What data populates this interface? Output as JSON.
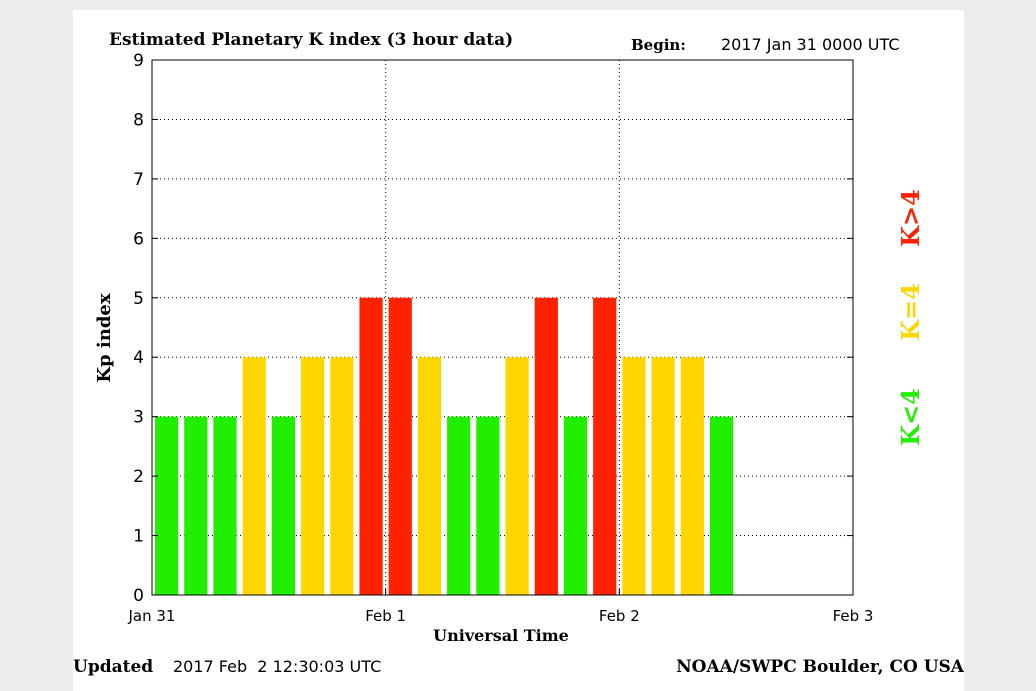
{
  "header": {
    "title": "Estimated Planetary K index (3 hour data)",
    "begin_label": "Begin:",
    "begin_value": "2017 Jan 31 0000 UTC"
  },
  "footer": {
    "updated_label": "Updated",
    "updated_value": "2017 Feb  2 12:30:03 UTC",
    "credit": "NOAA/SWPC Boulder, CO USA"
  },
  "legend": [
    {
      "label": "K>4",
      "color": "#ff2200"
    },
    {
      "label": "K=4",
      "color": "#ffd700"
    },
    {
      "label": "K<4",
      "color": "#22ee00"
    }
  ],
  "chart_data": {
    "type": "bar",
    "title": "Estimated Planetary K index (3 hour data)",
    "xlabel": "Universal Time",
    "ylabel": "Kp index",
    "ylim": [
      0,
      9
    ],
    "yticks": [
      "0",
      "1",
      "2",
      "3",
      "4",
      "5",
      "6",
      "7",
      "8",
      "9"
    ],
    "xticks": [
      "Jan 31",
      "Feb 1",
      "Feb 2",
      "Feb 3"
    ],
    "interval_hours": 3,
    "values": [
      3,
      3,
      3,
      4,
      3,
      4,
      4,
      5,
      5,
      4,
      3,
      3,
      4,
      5,
      3,
      5,
      4,
      4,
      4,
      3
    ],
    "colors": {
      "below4": "#22ee00",
      "equal4": "#ffd700",
      "above4": "#ff2200"
    },
    "grid": true
  }
}
